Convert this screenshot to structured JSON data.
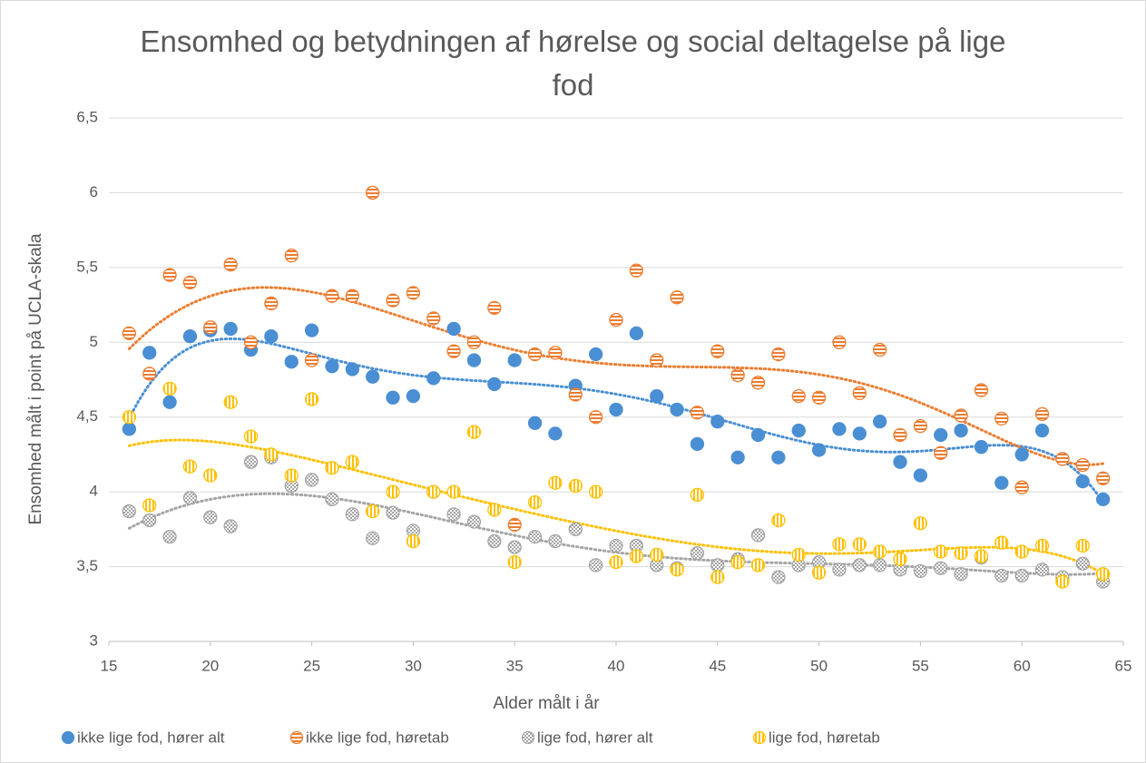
{
  "chart_data": {
    "type": "scatter",
    "title": "Ensomhed og betydningen af hørelse og social deltagelse på lige fod",
    "x_label": "Alder målt i år",
    "y_label": "Ensomhed målt i point på UCLA-skala",
    "x": [
      16,
      17,
      18,
      19,
      20,
      21,
      22,
      23,
      24,
      25,
      26,
      27,
      28,
      29,
      30,
      31,
      32,
      33,
      34,
      35,
      36,
      37,
      38,
      39,
      40,
      41,
      42,
      43,
      44,
      45,
      46,
      47,
      48,
      49,
      50,
      51,
      52,
      53,
      54,
      55,
      56,
      57,
      58,
      59,
      60,
      61,
      62,
      63,
      64
    ],
    "series": [
      {
        "name": "ikke lige fod, hører alt",
        "color": "#4a8fd3",
        "pattern": "solid",
        "values": [
          4.42,
          4.93,
          4.6,
          5.04,
          5.08,
          5.09,
          4.95,
          5.04,
          4.87,
          5.08,
          4.84,
          4.82,
          4.77,
          4.63,
          4.64,
          4.76,
          5.09,
          4.88,
          4.72,
          4.88,
          4.46,
          4.39,
          4.71,
          4.92,
          4.55,
          5.06,
          4.64,
          4.55,
          4.32,
          4.47,
          4.23,
          4.38,
          4.23,
          4.41,
          4.28,
          4.42,
          4.39,
          4.47,
          4.2,
          4.11,
          4.38,
          4.41,
          4.3,
          4.06,
          4.25,
          4.41,
          4.22,
          4.07,
          3.95
        ]
      },
      {
        "name": "ikke lige fod, høretab",
        "color": "#ed7d31",
        "pattern": "horizontal",
        "values": [
          5.06,
          4.79,
          5.45,
          5.4,
          5.1,
          5.52,
          5.0,
          5.26,
          5.58,
          4.88,
          5.31,
          5.31,
          6.0,
          5.28,
          5.33,
          5.16,
          4.94,
          5.0,
          5.23,
          3.78,
          4.92,
          4.93,
          4.65,
          4.5,
          5.15,
          5.48,
          4.88,
          5.3,
          4.53,
          4.94,
          4.78,
          4.73,
          4.92,
          4.64,
          4.63,
          5.0,
          4.66,
          4.95,
          4.38,
          4.44,
          4.26,
          4.51,
          4.68,
          4.49,
          4.03,
          4.52,
          4.22,
          4.18,
          4.09
        ]
      },
      {
        "name": "lige fod, hører alt",
        "color": "#a5a5a5",
        "pattern": "cross",
        "values": [
          3.87,
          3.81,
          3.7,
          3.96,
          3.83,
          3.77,
          4.2,
          4.23,
          4.04,
          4.08,
          3.95,
          3.85,
          3.69,
          3.86,
          3.74,
          4.0,
          3.85,
          3.8,
          3.67,
          3.63,
          3.7,
          3.67,
          3.75,
          3.51,
          3.64,
          3.64,
          3.51,
          3.49,
          3.59,
          3.51,
          3.55,
          3.71,
          3.43,
          3.51,
          3.53,
          3.48,
          3.51,
          3.51,
          3.48,
          3.47,
          3.49,
          3.45,
          3.56,
          3.44,
          3.44,
          3.48,
          3.43,
          3.52,
          3.4
        ]
      },
      {
        "name": "lige fod, høretab",
        "color": "#ffc000",
        "pattern": "vertical",
        "values": [
          4.5,
          3.91,
          4.69,
          4.17,
          4.11,
          4.6,
          4.37,
          4.25,
          4.11,
          4.62,
          4.16,
          4.2,
          3.87,
          4.0,
          3.67,
          4.0,
          4.0,
          4.4,
          3.88,
          3.53,
          3.93,
          4.06,
          4.04,
          4.0,
          3.53,
          3.57,
          3.58,
          3.48,
          3.98,
          3.43,
          3.53,
          3.51,
          3.81,
          3.58,
          3.46,
          3.65,
          3.65,
          3.6,
          3.55,
          3.79,
          3.6,
          3.59,
          3.57,
          3.66,
          3.6,
          3.64,
          3.4,
          3.64,
          3.45
        ]
      }
    ],
    "xlim": [
      15,
      65
    ],
    "xticks": [
      15,
      20,
      25,
      30,
      35,
      40,
      45,
      50,
      55,
      60,
      65
    ],
    "ylim": [
      3,
      6.5
    ],
    "yticks": [
      3,
      {
        "value": 3.5,
        "label": "3,5"
      },
      4,
      {
        "value": 4.5,
        "label": "4,5"
      },
      5,
      {
        "value": 5.5,
        "label": "5,5"
      },
      6,
      {
        "value": 6.5,
        "label": "6,5"
      }
    ],
    "grid": true,
    "legend": "bottom",
    "trendline": "polynomial",
    "trendline_order": 6
  }
}
